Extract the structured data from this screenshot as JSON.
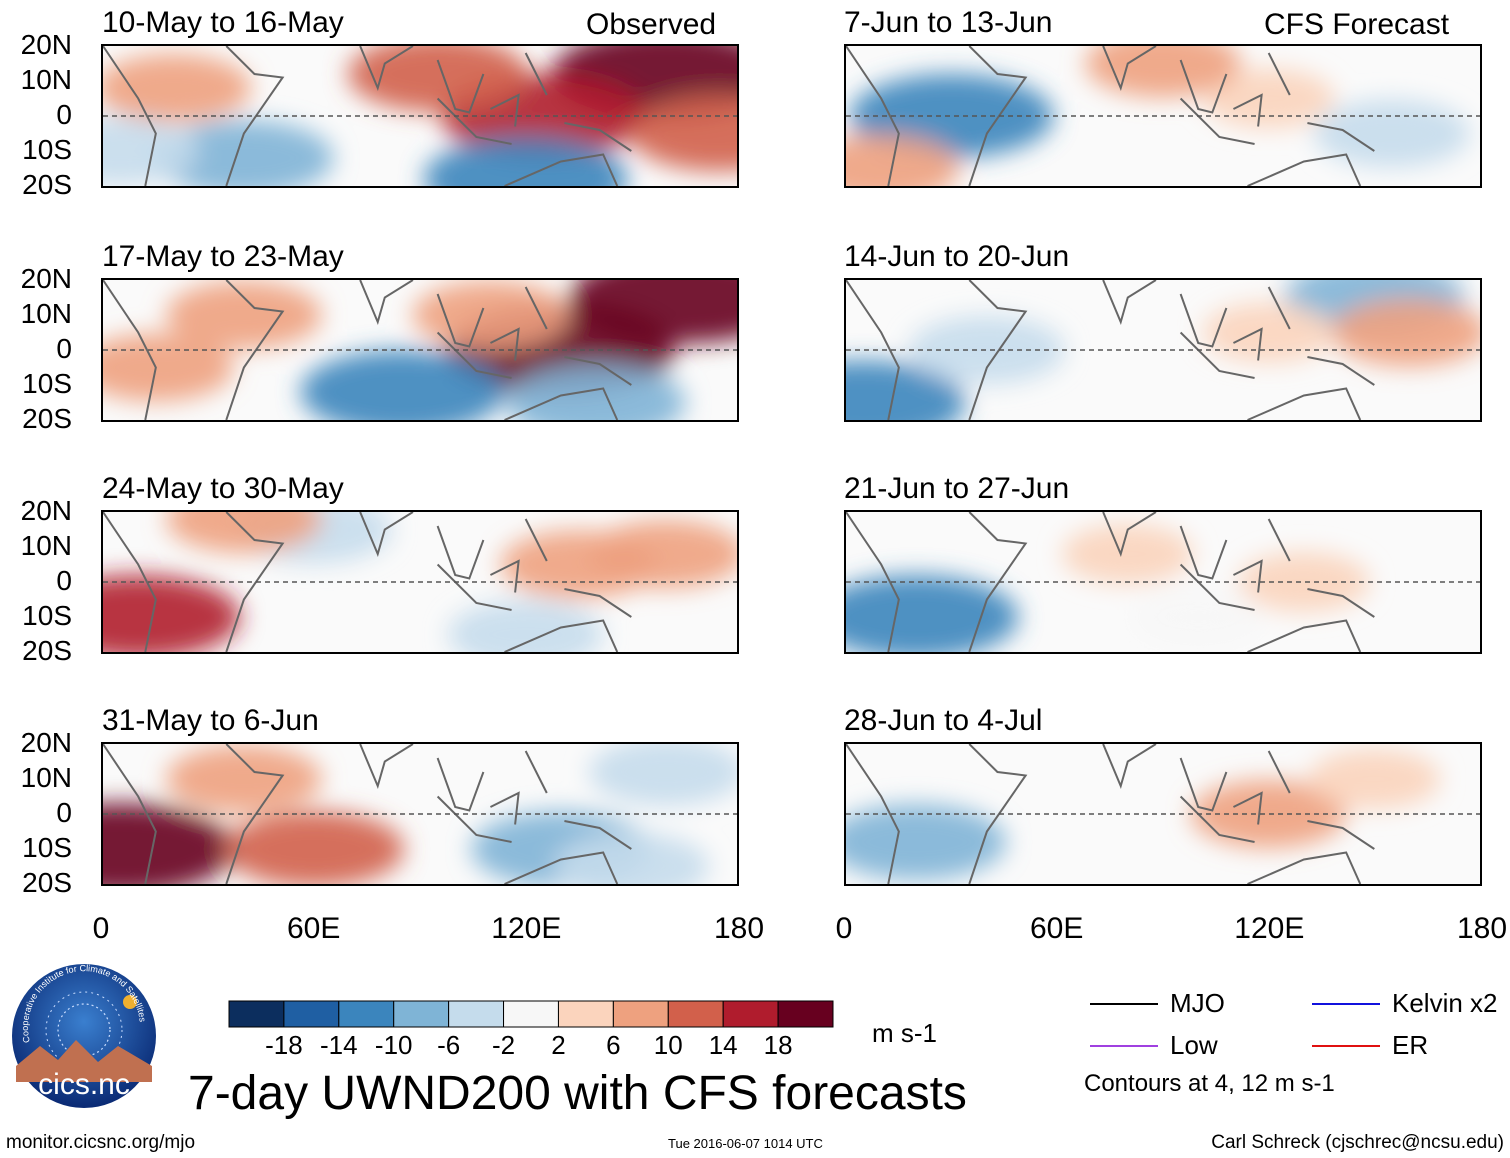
{
  "title": "7-day UWND200 with CFS forecasts",
  "labels": {
    "observed": "Observed",
    "forecast": "CFS Forecast",
    "units": "m s-1",
    "contour_note": "Contours at 4, 12 m s-1",
    "url": "monitor.cicsnc.org/mjo",
    "timestamp": "Tue 2016-06-07 1014 UTC",
    "credit": "Carl Schreck (cjschrec@ncsu.edu)",
    "logo_text": "cics.nc",
    "logo_ring": "Cooperative Institute for Climate and Satellites"
  },
  "chart_data": {
    "type": "heatmap",
    "variable": "200-hPa zonal wind anomaly",
    "units": "m s-1",
    "lat_ticks": [
      "20N",
      "10N",
      "0",
      "10S",
      "20S"
    ],
    "lon_ticks": [
      "0",
      "60E",
      "120E",
      "180"
    ],
    "lon_range": [
      0,
      180
    ],
    "lat_range": [
      -20,
      20
    ],
    "panels": [
      {
        "column": "observed",
        "period": "10-May to 16-May",
        "anomalies": [
          {
            "lon": 160,
            "lat": 12,
            "value": 18
          },
          {
            "lon": 125,
            "lat": 0,
            "value": 14
          },
          {
            "lon": 95,
            "lat": 12,
            "value": 10
          },
          {
            "lon": 40,
            "lat": -12,
            "value": -10
          },
          {
            "lon": 120,
            "lat": -18,
            "value": -14
          },
          {
            "lon": 175,
            "lat": -5,
            "value": 10
          },
          {
            "lon": 20,
            "lat": 8,
            "value": 6
          },
          {
            "lon": 5,
            "lat": -10,
            "value": -6
          }
        ]
      },
      {
        "column": "observed",
        "period": "17-May to 23-May",
        "anomalies": [
          {
            "lon": 130,
            "lat": 0,
            "value": 18
          },
          {
            "lon": 165,
            "lat": 15,
            "value": 18
          },
          {
            "lon": 110,
            "lat": 10,
            "value": 6
          },
          {
            "lon": 85,
            "lat": -12,
            "value": -14
          },
          {
            "lon": 140,
            "lat": -15,
            "value": -10
          },
          {
            "lon": 15,
            "lat": -5,
            "value": 6
          },
          {
            "lon": 40,
            "lat": 10,
            "value": 6
          }
        ]
      },
      {
        "column": "observed",
        "period": "24-May to 30-May",
        "anomalies": [
          {
            "lon": 10,
            "lat": -10,
            "value": 14
          },
          {
            "lon": 135,
            "lat": 5,
            "value": 6
          },
          {
            "lon": 160,
            "lat": 8,
            "value": 6
          },
          {
            "lon": 60,
            "lat": 15,
            "value": -6
          },
          {
            "lon": 120,
            "lat": -15,
            "value": -6
          },
          {
            "lon": 40,
            "lat": 18,
            "value": 6
          }
        ]
      },
      {
        "column": "observed",
        "period": "31-May to 6-Jun",
        "anomalies": [
          {
            "lon": 5,
            "lat": -10,
            "value": 18
          },
          {
            "lon": 40,
            "lat": 10,
            "value": 6
          },
          {
            "lon": 60,
            "lat": -10,
            "value": 10
          },
          {
            "lon": 130,
            "lat": -10,
            "value": -10
          },
          {
            "lon": 160,
            "lat": 12,
            "value": -6
          },
          {
            "lon": 150,
            "lat": -15,
            "value": -6
          }
        ]
      },
      {
        "column": "forecast",
        "period": "7-Jun to 13-Jun",
        "anomalies": [
          {
            "lon": 30,
            "lat": 0,
            "value": -14
          },
          {
            "lon": 10,
            "lat": -15,
            "value": 6
          },
          {
            "lon": 120,
            "lat": 5,
            "value": 2
          },
          {
            "lon": 155,
            "lat": -5,
            "value": -6
          },
          {
            "lon": 90,
            "lat": 15,
            "value": 6
          }
        ]
      },
      {
        "column": "forecast",
        "period": "14-Jun to 20-Jun",
        "anomalies": [
          {
            "lon": 5,
            "lat": -15,
            "value": -14
          },
          {
            "lon": 150,
            "lat": 15,
            "value": -10
          },
          {
            "lon": 160,
            "lat": 5,
            "value": 6
          },
          {
            "lon": 40,
            "lat": 0,
            "value": -6
          },
          {
            "lon": 120,
            "lat": 5,
            "value": 2
          }
        ]
      },
      {
        "column": "forecast",
        "period": "21-Jun to 27-Jun",
        "anomalies": [
          {
            "lon": 20,
            "lat": -10,
            "value": -14
          },
          {
            "lon": 80,
            "lat": 8,
            "value": 2
          },
          {
            "lon": 130,
            "lat": 0,
            "value": 2
          },
          {
            "lon": 100,
            "lat": -10,
            "value": -2
          }
        ]
      },
      {
        "column": "forecast",
        "period": "28-Jun to 4-Jul",
        "anomalies": [
          {
            "lon": 20,
            "lat": -8,
            "value": -10
          },
          {
            "lon": 120,
            "lat": 0,
            "value": 6
          },
          {
            "lon": 150,
            "lat": 10,
            "value": 2
          }
        ]
      }
    ],
    "colorbar": {
      "boundaries": [
        "-18",
        "-14",
        "-10",
        "-6",
        "-2",
        "2",
        "6",
        "10",
        "14",
        "18"
      ],
      "colors": [
        "#0c2e5e",
        "#1f5fa3",
        "#3b85bd",
        "#7fb4d6",
        "#c5dcec",
        "#f7f7f7",
        "#fbd4bd",
        "#eea17f",
        "#d2604b",
        "#b01c2d",
        "#67001f"
      ]
    },
    "legend": [
      {
        "label": "MJO",
        "color": "#000000"
      },
      {
        "label": "Kelvin x2",
        "color": "#1111dd"
      },
      {
        "label": "Low",
        "color": "#a040e0"
      },
      {
        "label": "ER",
        "color": "#e01010"
      }
    ]
  }
}
